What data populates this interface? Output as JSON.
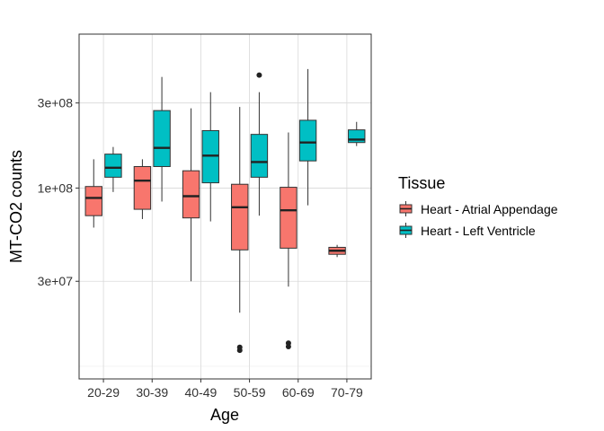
{
  "chart_data": {
    "type": "boxplot",
    "x_label": "Age",
    "y_label": "MT-CO2 counts",
    "y_scale": "log10",
    "y_range": [
      8500000,
      730000000
    ],
    "y_ticks": [
      {
        "value": 30000000,
        "label": "3e+07"
      },
      {
        "value": 100000000,
        "label": "1e+08"
      },
      {
        "value": 300000000,
        "label": "3e+08"
      }
    ],
    "grid": true,
    "legend_position": "right",
    "categories": [
      "20-29",
      "30-39",
      "40-49",
      "50-59",
      "60-69",
      "70-79"
    ],
    "legend": {
      "title": "Tissue",
      "entries": [
        {
          "label": "Heart - Atrial Appendage",
          "color": "#F8766D"
        },
        {
          "label": "Heart - Left Ventricle",
          "color": "#00BFC4"
        }
      ]
    },
    "series": [
      {
        "name": "Heart - Atrial Appendage",
        "color": "#F8766D",
        "boxes": [
          {
            "category": "20-29",
            "whisker_low": 60000000,
            "q1": 70000000,
            "median": 88000000,
            "q3": 102000000,
            "whisker_high": 145000000,
            "outliers": []
          },
          {
            "category": "30-39",
            "whisker_low": 67000000,
            "q1": 76000000,
            "median": 110000000,
            "q3": 132000000,
            "whisker_high": 145000000,
            "outliers": []
          },
          {
            "category": "40-49",
            "whisker_low": 30000000,
            "q1": 68000000,
            "median": 90000000,
            "q3": 125000000,
            "whisker_high": 280000000,
            "outliers": []
          },
          {
            "category": "50-59",
            "whisker_low": 20000000,
            "q1": 45000000,
            "median": 78000000,
            "q3": 105000000,
            "whisker_high": 285000000,
            "outliers": [
              12800000,
              12300000
            ]
          },
          {
            "category": "60-69",
            "whisker_low": 28000000,
            "q1": 46000000,
            "median": 75000000,
            "q3": 101000000,
            "whisker_high": 205000000,
            "outliers": [
              13500000,
              12900000
            ]
          },
          {
            "category": "70-79",
            "whisker_low": 41000000,
            "q1": 42500000,
            "median": 44500000,
            "q3": 46500000,
            "whisker_high": 48000000,
            "outliers": []
          }
        ]
      },
      {
        "name": "Heart - Left Ventricle",
        "color": "#00BFC4",
        "boxes": [
          {
            "category": "20-29",
            "whisker_low": 95000000,
            "q1": 115000000,
            "median": 130000000,
            "q3": 155000000,
            "whisker_high": 170000000,
            "outliers": []
          },
          {
            "category": "30-39",
            "whisker_low": 84000000,
            "q1": 132000000,
            "median": 168000000,
            "q3": 272000000,
            "whisker_high": 420000000,
            "outliers": []
          },
          {
            "category": "40-49",
            "whisker_low": 65000000,
            "q1": 107000000,
            "median": 152000000,
            "q3": 210000000,
            "whisker_high": 345000000,
            "outliers": []
          },
          {
            "category": "50-59",
            "whisker_low": 70000000,
            "q1": 115000000,
            "median": 140000000,
            "q3": 200000000,
            "whisker_high": 345000000,
            "outliers": [
              430000000
            ]
          },
          {
            "category": "60-69",
            "whisker_low": 80000000,
            "q1": 142000000,
            "median": 180000000,
            "q3": 240000000,
            "whisker_high": 465000000,
            "outliers": []
          },
          {
            "category": "70-79",
            "whisker_low": 172000000,
            "q1": 180000000,
            "median": 187000000,
            "q3": 212000000,
            "whisker_high": 235000000,
            "outliers": []
          }
        ]
      }
    ]
  }
}
